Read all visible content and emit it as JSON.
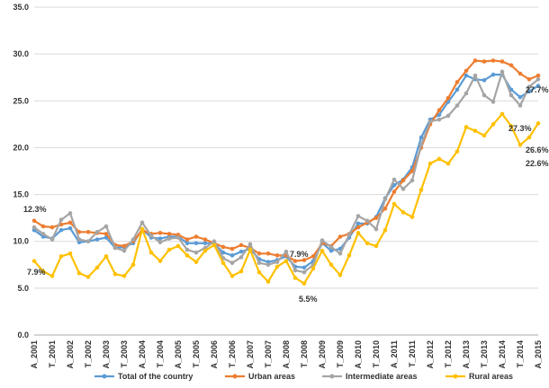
{
  "chart_data": {
    "type": "line",
    "categories": [
      "A_2001",
      null,
      "T_2001",
      null,
      "A_2002",
      null,
      "T_2002",
      null,
      "A_2003",
      null,
      "T_2003",
      null,
      "A_2004",
      null,
      "T_2004",
      null,
      "A_2005",
      null,
      "T_2005",
      null,
      "A_2006",
      null,
      "T_2006",
      null,
      "A_2007",
      null,
      "T_2007",
      null,
      "A_2008",
      null,
      "T_2008",
      null,
      "A_2009",
      null,
      "T_2009",
      null,
      "A_2010",
      null,
      "T_2010",
      null,
      "A_2011",
      null,
      "T_2011",
      null,
      "A_2012",
      null,
      "T_2012",
      null,
      "A_2013",
      null,
      "T_2013",
      null,
      "A_2014",
      null,
      "T_2014",
      null,
      "A_2015"
    ],
    "series": [
      {
        "name": "Total of the country",
        "color": "#5b9bd5",
        "values": [
          11.2,
          10.5,
          10.3,
          11.2,
          11.4,
          9.9,
          10.0,
          10.2,
          10.4,
          9.3,
          9.4,
          9.8,
          11.3,
          10.4,
          10.3,
          10.5,
          10.5,
          9.8,
          9.8,
          9.8,
          9.8,
          8.8,
          8.5,
          8.9,
          9.2,
          8.1,
          7.8,
          8.0,
          8.4,
          7.3,
          7.2,
          7.9,
          9.8,
          9.0,
          9.2,
          10.4,
          11.9,
          11.9,
          12.6,
          14.6,
          16.0,
          16.6,
          17.9,
          21.1,
          23.0,
          23.5,
          24.9,
          26.2,
          27.7,
          27.3,
          27.2,
          27.8,
          27.8,
          26.2,
          25.4,
          26.0,
          26.6
        ]
      },
      {
        "name": "Urban areas",
        "color": "#ed7d31",
        "values": [
          12.2,
          11.6,
          11.5,
          11.8,
          12.0,
          11.0,
          11.0,
          10.9,
          10.8,
          9.6,
          9.5,
          10.0,
          11.2,
          10.8,
          10.9,
          10.8,
          10.7,
          10.2,
          10.5,
          10.2,
          9.8,
          9.4,
          9.2,
          9.6,
          9.3,
          8.7,
          8.7,
          8.5,
          8.5,
          7.9,
          8.0,
          8.4,
          9.8,
          9.5,
          10.5,
          10.8,
          11.5,
          12.0,
          12.5,
          13.5,
          15.3,
          16.5,
          17.5,
          20.0,
          22.5,
          24.0,
          25.3,
          27.0,
          28.2,
          29.3,
          29.2,
          29.3,
          29.2,
          28.8,
          27.9,
          27.3,
          27.7
        ]
      },
      {
        "name": "Intermediate areas",
        "color": "#a5a5a5",
        "values": [
          11.5,
          10.8,
          10.2,
          12.3,
          13.0,
          10.2,
          10.0,
          11.0,
          11.6,
          9.3,
          9.0,
          10.2,
          12.0,
          10.6,
          9.9,
          10.3,
          10.4,
          9.1,
          8.8,
          9.3,
          10.0,
          8.2,
          7.7,
          8.3,
          9.7,
          7.7,
          7.5,
          7.8,
          8.9,
          6.9,
          6.7,
          7.5,
          10.1,
          9.4,
          8.7,
          10.7,
          12.7,
          12.2,
          11.3,
          14.5,
          16.6,
          15.6,
          16.5,
          20.3,
          22.8,
          23.0,
          23.4,
          24.5,
          25.8,
          27.7,
          25.6,
          24.9,
          28.1,
          25.6,
          24.5,
          26.5,
          27.3
        ]
      },
      {
        "name": "Rural areas",
        "color": "#ffc000",
        "values": [
          7.9,
          6.8,
          6.3,
          8.4,
          8.7,
          6.6,
          6.2,
          7.2,
          8.4,
          6.5,
          6.3,
          7.5,
          11.3,
          8.8,
          7.9,
          9.1,
          9.5,
          8.5,
          7.8,
          9.0,
          9.6,
          7.7,
          6.3,
          6.8,
          9.1,
          6.7,
          5.7,
          7.3,
          7.9,
          6.1,
          5.5,
          7.1,
          9.0,
          7.5,
          6.4,
          8.5,
          10.9,
          9.8,
          9.5,
          11.2,
          14.0,
          13.1,
          12.6,
          15.5,
          18.3,
          18.8,
          18.3,
          19.6,
          22.2,
          21.8,
          21.3,
          22.5,
          23.6,
          22.3,
          20.3,
          21.1,
          22.6
        ]
      }
    ],
    "annotations": [
      "12.3%",
      "7.9%",
      "7.9%",
      "5.5%",
      "27.7%",
      "27.3%",
      "26.6%",
      "22.6%"
    ],
    "ylim": [
      0,
      35
    ],
    "yticks": [
      {
        "value": 0,
        "label": "0.0"
      },
      {
        "value": 5,
        "label": "5.0"
      },
      {
        "value": 10,
        "label": "10.0"
      },
      {
        "value": 15,
        "label": "15.0"
      },
      {
        "value": 20,
        "label": "20.0"
      },
      {
        "value": 25,
        "label": "25.0"
      },
      {
        "value": 30,
        "label": "30.0"
      },
      {
        "value": 35,
        "label": "35.0"
      }
    ],
    "grid": true,
    "legend": "bottom"
  }
}
